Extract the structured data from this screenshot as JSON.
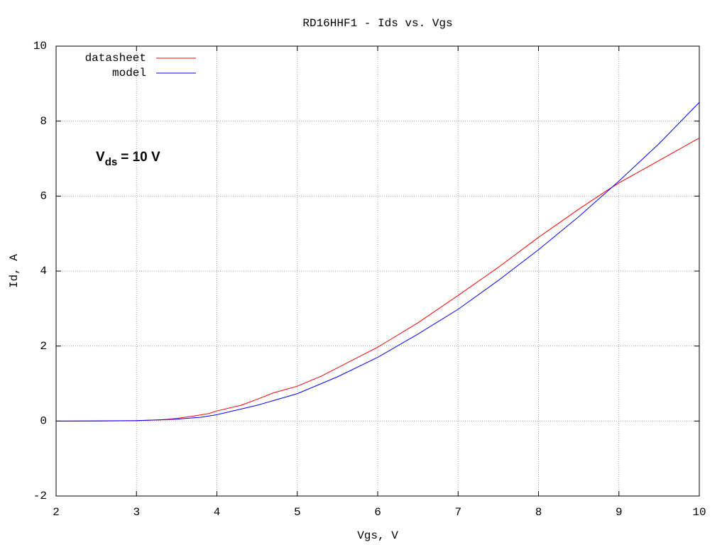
{
  "chart_data": {
    "type": "line",
    "title": "RD16HHF1 - Ids vs. Vgs",
    "x_label": "Vgs, V",
    "y_label": "Id, A",
    "annotation": {
      "base": "V",
      "subscript": "ds",
      "rest": "= 10 V"
    },
    "xlim": [
      2,
      10
    ],
    "xticks": [
      2,
      3,
      4,
      5,
      6,
      7,
      8,
      9,
      10
    ],
    "ylim": [
      -2,
      10
    ],
    "yticks": [
      -2,
      0,
      2,
      4,
      6,
      8,
      10
    ],
    "grid": true,
    "legend": "top-left",
    "series": [
      {
        "name": "datasheet",
        "color": "#ff0000",
        "x": [
          2,
          2.5,
          3,
          3.3,
          3.5,
          3.7,
          3.9,
          4,
          4.3,
          4.5,
          4.7,
          5,
          5.3,
          5.5,
          6,
          6.5,
          7,
          7.5,
          8,
          8.5,
          8.85,
          9,
          9.5,
          10
        ],
        "values": [
          0,
          0,
          0.01,
          0.03,
          0.07,
          0.13,
          0.2,
          0.27,
          0.42,
          0.58,
          0.75,
          0.93,
          1.2,
          1.42,
          1.97,
          2.62,
          3.35,
          4.1,
          4.9,
          5.65,
          6.15,
          6.35,
          6.95,
          7.55
        ]
      },
      {
        "name": "model",
        "color": "#0000ff",
        "x": [
          2,
          3,
          3.5,
          3.8,
          4,
          4.5,
          5,
          5.5,
          6,
          6.5,
          7,
          7.5,
          8,
          8.5,
          9,
          9.5,
          10
        ],
        "values": [
          0,
          0.01,
          0.05,
          0.1,
          0.17,
          0.42,
          0.73,
          1.18,
          1.7,
          2.32,
          2.98,
          3.75,
          4.57,
          5.45,
          6.4,
          7.4,
          8.5
        ]
      }
    ]
  }
}
